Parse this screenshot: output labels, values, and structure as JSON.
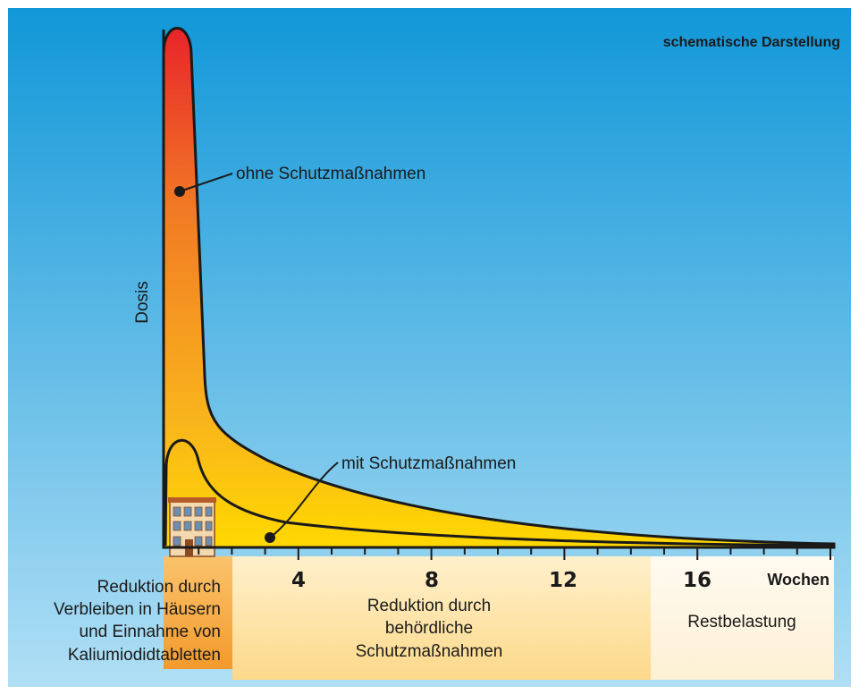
{
  "header": {
    "title": "schematische Darstellung"
  },
  "axes": {
    "y_label": "Dosis",
    "x_unit": "Wochen",
    "x_ticks": [
      "4",
      "8",
      "12",
      "16"
    ]
  },
  "curves": [
    {
      "label": "ohne Schutzmaßnahmen"
    },
    {
      "label": "mit Schutzmaßnahmen"
    }
  ],
  "phases": [
    {
      "lines": [
        "Reduktion durch",
        "Verbleiben in Häusern",
        "und Einnahme von",
        "Kaliumiodidtabletten"
      ]
    },
    {
      "lines": [
        "Reduktion durch",
        "behördliche",
        "Schutzmaßnahmen"
      ]
    },
    {
      "lines": [
        "Restbelastung"
      ]
    }
  ]
}
